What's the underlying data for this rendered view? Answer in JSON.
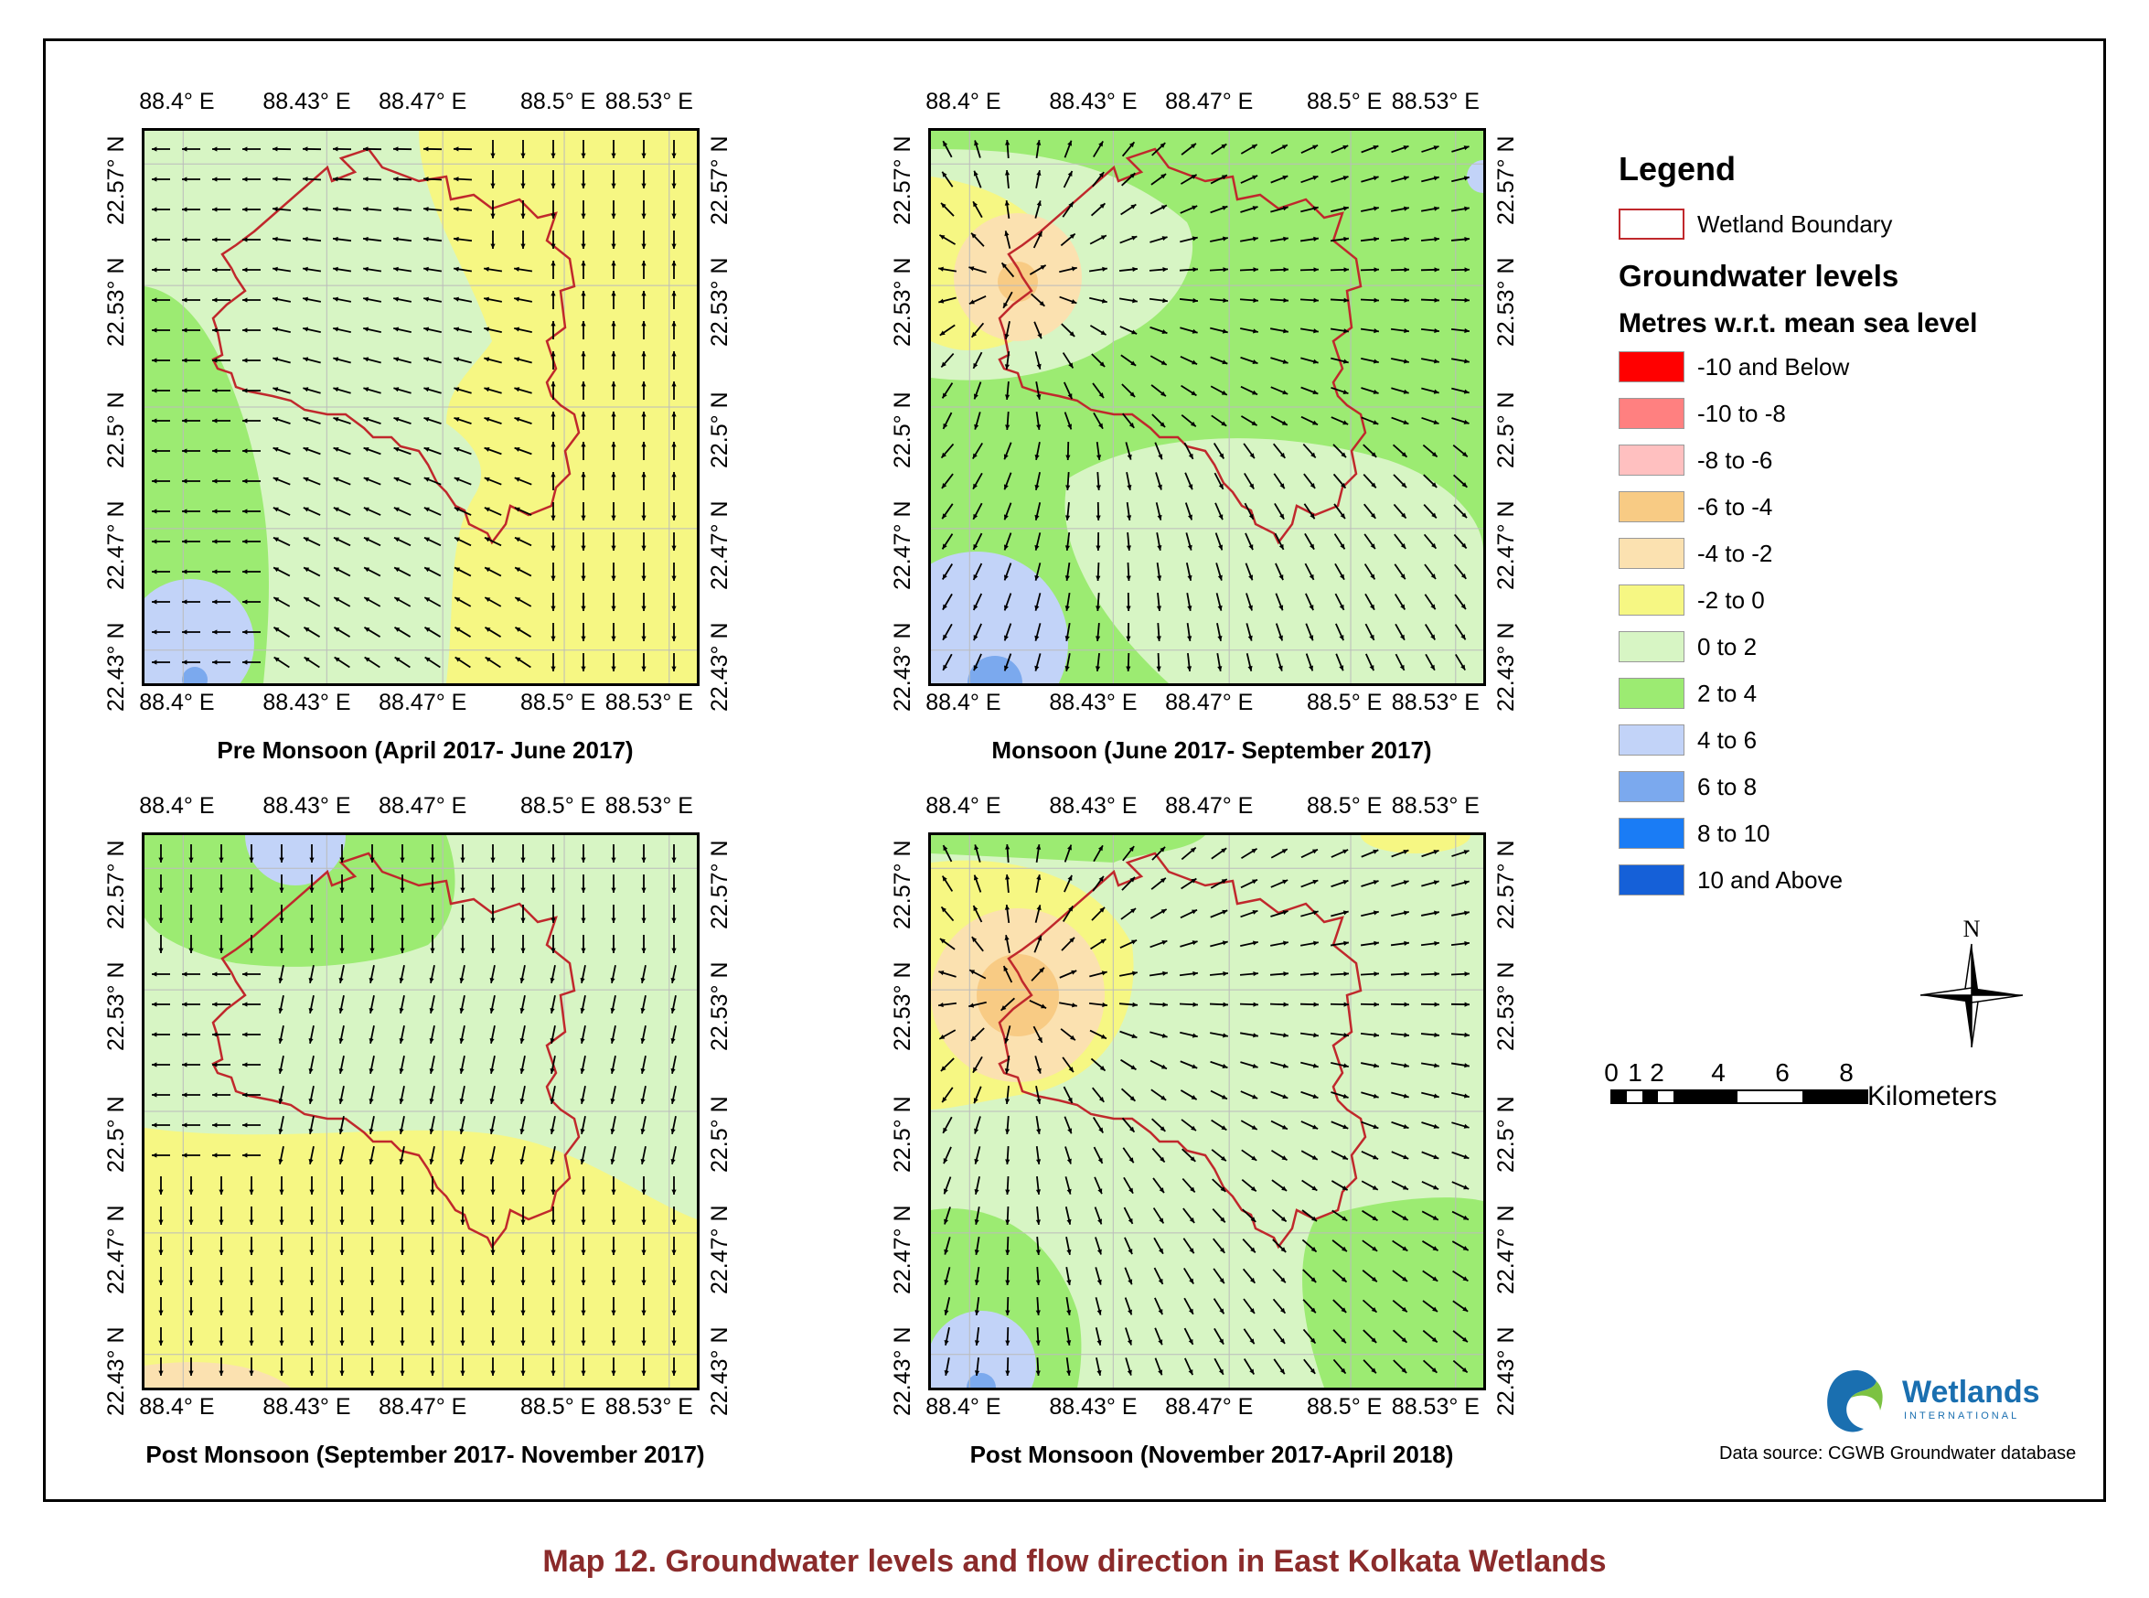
{
  "colors": {
    "boundary": "#c0282c",
    "class_0_to_2": "#d7f5c4",
    "class_2_to_4": "#9ceb72",
    "class_m2_to_0": "#f6f783",
    "class_m4_to_m2": "#fbe1b0",
    "class_m6_to_m4": "#f8cb84",
    "class_4_to_6": "#c2d3f8",
    "class_6_to_8": "#7ba9ee"
  },
  "axes": {
    "lon_ticks": [
      "88.4° E",
      "88.43° E",
      "88.47° E",
      "88.5° E",
      "88.53° E"
    ],
    "lat_ticks": [
      "22.57° N",
      "22.53° N",
      "22.5° N",
      "22.47° N",
      "22.43° N"
    ]
  },
  "panels": [
    {
      "id": "pre-monsoon",
      "title": "Pre Monsoon (April 2017- June 2017)"
    },
    {
      "id": "monsoon",
      "title": "Monsoon (June 2017- September 2017)"
    },
    {
      "id": "post-monsoon-1",
      "title": "Post Monsoon (September 2017- November 2017)"
    },
    {
      "id": "post-monsoon-2",
      "title": "Post Monsoon (November 2017-April 2018)"
    }
  ],
  "legend": {
    "title": "Legend",
    "boundary_label": "Wetland Boundary",
    "gw_title": "Groundwater levels",
    "units_title": "Metres w.r.t. mean sea level",
    "classes": [
      {
        "label": "-10 and Below",
        "color": "#ff0000"
      },
      {
        "label": "-10 to -8",
        "color": "#ff8080"
      },
      {
        "label": "-8 to -6",
        "color": "#ffc0c0"
      },
      {
        "label": "-6 to -4",
        "color": "#f8cb84"
      },
      {
        "label": "-4 to -2",
        "color": "#fbe1b0"
      },
      {
        "label": "-2 to 0",
        "color": "#f6f783"
      },
      {
        "label": "0 to 2",
        "color": "#d7f5c4"
      },
      {
        "label": "2 to 4",
        "color": "#9ceb72"
      },
      {
        "label": "4 to 6",
        "color": "#c2d3f8"
      },
      {
        "label": "6 to 8",
        "color": "#7ba9ee"
      },
      {
        "label": "8 to 10",
        "color": "#1a7cf5"
      },
      {
        "label": "10 and Above",
        "color": "#1560d8"
      }
    ]
  },
  "north_label": "N",
  "scale": {
    "labels": [
      "0",
      "1",
      "2",
      "4",
      "6",
      "8"
    ],
    "unit": "Kilometers"
  },
  "logo": {
    "name": "Wetlands",
    "sub": "INTERNATIONAL"
  },
  "source": "Data source: CGWB Groundwater database",
  "caption": "Map 12. Groundwater levels and flow direction in East Kolkata Wetlands"
}
